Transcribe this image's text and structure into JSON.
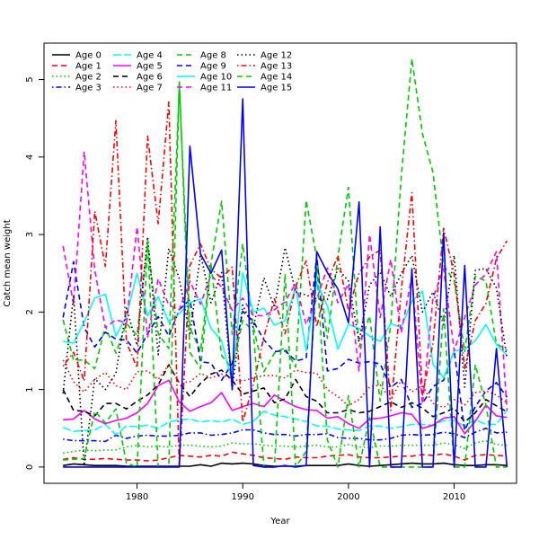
{
  "chart_data": {
    "type": "line",
    "title": "",
    "xlabel": "Year",
    "ylabel": "Catch mean weight",
    "xlim": [
      1971.2,
      1915.9
    ],
    "ylim": [
      -0.21,
      5.47
    ],
    "x_ticks": [
      1980,
      1990,
      2000,
      2010
    ],
    "y_ticks": [
      0,
      1,
      2,
      3,
      4,
      5
    ],
    "legend_position": "top-left",
    "x": [
      1973,
      1974,
      1975,
      1976,
      1977,
      1978,
      1979,
      1980,
      1981,
      1982,
      1983,
      1984,
      1985,
      1986,
      1987,
      1988,
      1989,
      1990,
      1991,
      1992,
      1993,
      1994,
      1995,
      1996,
      1997,
      1998,
      1999,
      2000,
      2001,
      2002,
      2003,
      2004,
      2005,
      2006,
      2007,
      2008,
      2009,
      2010,
      2011,
      2012,
      2013,
      2014,
      2015
    ],
    "series": [
      {
        "name": "Age 0",
        "color": "#000000",
        "dash": "solid",
        "values": [
          0.02,
          0.04,
          0.03,
          0.02,
          0.02,
          0.02,
          0.01,
          0.01,
          0.01,
          0.01,
          0.01,
          0.01,
          0.01,
          0.03,
          0.01,
          0.05,
          0.04,
          0.05,
          0.04,
          0.02,
          0.01,
          0.01,
          0.01,
          0.02,
          0.02,
          0.02,
          0.02,
          0.04,
          0.02,
          0.01,
          0.02,
          0.03,
          0.04,
          0.05,
          0.04,
          0.04,
          0.05,
          0.03,
          0.02,
          0.02,
          0.03,
          0.03,
          0.02
        ]
      },
      {
        "name": "Age 1",
        "color": "#ff0000",
        "dash": "dashed",
        "values": [
          0.1,
          0.12,
          0.1,
          0.1,
          0.11,
          0.1,
          0.09,
          0.09,
          0.08,
          0.09,
          0.12,
          0.15,
          0.14,
          0.13,
          0.15,
          0.14,
          0.19,
          0.17,
          0.15,
          0.12,
          0.11,
          0.1,
          0.13,
          0.12,
          0.12,
          0.14,
          0.15,
          0.16,
          0.13,
          0.12,
          0.12,
          0.13,
          0.14,
          0.14,
          0.16,
          0.15,
          0.17,
          0.14,
          0.09,
          0.15,
          0.16,
          0.15,
          0.14
        ]
      },
      {
        "name": "Age 2",
        "color": "#00cc00",
        "dash": "dotted",
        "values": [
          0.18,
          0.2,
          0.22,
          0.21,
          0.22,
          0.22,
          0.26,
          0.28,
          0.26,
          0.27,
          0.26,
          0.28,
          0.28,
          0.27,
          0.26,
          0.27,
          0.31,
          0.3,
          0.3,
          0.28,
          0.27,
          0.27,
          0.26,
          0.27,
          0.28,
          0.26,
          0.26,
          0.29,
          0.26,
          0.25,
          0.27,
          0.27,
          0.28,
          0.28,
          0.28,
          0.28,
          0.31,
          0.29,
          0.24,
          0.31,
          0.34,
          0.29,
          0.28
        ]
      },
      {
        "name": "Age 3",
        "color": "#0000ff",
        "dash": "dotdash",
        "values": [
          0.36,
          0.34,
          0.34,
          0.34,
          0.33,
          0.41,
          0.37,
          0.4,
          0.41,
          0.4,
          0.4,
          0.41,
          0.44,
          0.44,
          0.41,
          0.42,
          0.44,
          0.48,
          0.48,
          0.44,
          0.42,
          0.42,
          0.4,
          0.42,
          0.42,
          0.43,
          0.38,
          0.37,
          0.37,
          0.35,
          0.35,
          0.37,
          0.41,
          0.42,
          0.41,
          0.42,
          0.45,
          0.43,
          0.38,
          0.45,
          0.5,
          0.44,
          0.45
        ]
      },
      {
        "name": "Age 4",
        "color": "#00ffff",
        "dash": "longdash",
        "values": [
          0.51,
          0.46,
          0.47,
          0.48,
          0.55,
          0.42,
          0.53,
          0.52,
          0.54,
          0.5,
          0.58,
          0.61,
          0.62,
          0.58,
          0.6,
          0.58,
          0.62,
          0.55,
          0.59,
          0.72,
          0.67,
          0.65,
          0.62,
          0.59,
          0.53,
          0.53,
          0.49,
          0.48,
          0.47,
          0.53,
          0.53,
          0.5,
          0.52,
          0.55,
          0.55,
          0.54,
          0.6,
          0.6,
          0.53,
          0.61,
          0.55,
          0.55,
          0.73
        ]
      },
      {
        "name": "Age 5",
        "color": "#ff00ff",
        "dash": "solid",
        "values": [
          0.61,
          0.62,
          0.73,
          0.62,
          0.56,
          0.6,
          0.63,
          0.7,
          0.82,
          1.05,
          1.12,
          0.84,
          0.72,
          0.78,
          0.83,
          0.96,
          0.73,
          0.78,
          0.82,
          0.78,
          0.93,
          0.85,
          0.78,
          0.74,
          0.73,
          0.63,
          0.65,
          0.56,
          0.5,
          0.62,
          0.63,
          0.66,
          0.7,
          0.68,
          0.5,
          0.54,
          0.63,
          0.65,
          0.43,
          0.59,
          0.8,
          0.66,
          0.64
        ]
      },
      {
        "name": "Age 6",
        "color": "#000000",
        "dash": "dashed",
        "values": [
          1.0,
          0.73,
          0.72,
          0.66,
          0.82,
          0.82,
          0.75,
          0.85,
          0.93,
          1.06,
          1.32,
          1.08,
          0.91,
          1.08,
          1.2,
          1.25,
          1.12,
          0.94,
          0.98,
          1.02,
          0.83,
          0.88,
          1.13,
          0.91,
          0.85,
          0.7,
          0.7,
          0.74,
          0.7,
          0.72,
          0.78,
          0.84,
          0.77,
          0.83,
          0.76,
          0.65,
          0.7,
          0.76,
          0.58,
          0.7,
          0.87,
          0.79,
          0.71
        ]
      },
      {
        "name": "Age 7",
        "color": "#ff0000",
        "dash": "dotted",
        "values": [
          1.38,
          1.1,
          0.97,
          1.13,
          1.22,
          1.05,
          1.0,
          1.23,
          1.24,
          1.13,
          1.32,
          1.09,
          1.1,
          1.21,
          1.15,
          1.2,
          1.13,
          1.11,
          1.15,
          1.18,
          1.18,
          1.15,
          1.25,
          1.22,
          1.21,
          1.0,
          0.91,
          0.79,
          0.87,
          1.03,
          1.06,
          0.87,
          1.12,
          0.97,
          1.05,
          0.82,
          0.77,
          0.87,
          0.8,
          0.96,
          0.98,
          0.93,
          0.83
        ]
      },
      {
        "name": "Age 8",
        "color": "#00cc00",
        "dash": "dashed",
        "values": [
          1.9,
          1.38,
          1.38,
          1.27,
          1.82,
          1.47,
          1.85,
          1.7,
          2.9,
          1.72,
          1.53,
          4.93,
          1.8,
          1.49,
          2.63,
          3.43,
          1.71,
          2.88,
          1.81,
          1.23,
          1.47,
          1.54,
          1.29,
          3.44,
          2.7,
          1.66,
          2.71,
          3.61,
          1.55,
          1.95,
          0.85,
          1.84,
          3.75,
          5.27,
          4.3,
          3.8,
          2.6,
          2.4,
          1.49,
          2.46,
          2.4,
          1.59,
          1.51
        ]
      },
      {
        "name": "Age 9",
        "color": "#0000ff",
        "dash": "dashed",
        "values": [
          1.93,
          2.65,
          1.8,
          1.55,
          1.74,
          1.65,
          1.64,
          1.47,
          1.72,
          1.94,
          1.69,
          2.03,
          2.16,
          1.36,
          1.34,
          1.12,
          1.34,
          2.01,
          1.88,
          1.64,
          1.49,
          1.5,
          1.37,
          1.4,
          2.73,
          1.24,
          1.27,
          1.39,
          1.34,
          1.36,
          1.33,
          1.03,
          1.13,
          0.77,
          0.82,
          1.04,
          1.12,
          1.5,
          0.47,
          0.78,
          0.98,
          1.09,
          0.9
        ]
      },
      {
        "name": "Age 10",
        "color": "#00ffff",
        "dash": "solid",
        "values": [
          1.62,
          1.6,
          1.87,
          2.18,
          2.23,
          1.69,
          1.95,
          2.5,
          1.95,
          2.2,
          1.87,
          1.98,
          2.12,
          2.17,
          1.79,
          1.63,
          1.1,
          2.51,
          2.0,
          2.05,
          1.83,
          1.89,
          2.32,
          1.5,
          2.38,
          2.08,
          1.52,
          1.84,
          1.79,
          1.69,
          1.62,
          1.85,
          1.8,
          2.14,
          2.27,
          1.33,
          1.15,
          1.5,
          1.52,
          1.63,
          1.84,
          1.58,
          1.44
        ]
      },
      {
        "name": "Age 11",
        "color": "#ff00ff",
        "dash": "dashed",
        "values": [
          2.85,
          2.1,
          4.07,
          2.54,
          1.8,
          1.9,
          1.86,
          3.1,
          1.68,
          2.43,
          2.09,
          2.03,
          2.4,
          2.1,
          2.48,
          2.32,
          2.02,
          2.18,
          1.96,
          1.95,
          2.03,
          2.13,
          2.37,
          1.84,
          2.17,
          2.57,
          2.12,
          2.36,
          1.24,
          3.0,
          1.93,
          2.68,
          1.73,
          2.47,
          0.81,
          2.18,
          2.56,
          1.5,
          1.93,
          2.35,
          2.49,
          2.78,
          0.73
        ]
      },
      {
        "name": "Age 12",
        "color": "#000000",
        "dash": "dotted",
        "values": [
          0.95,
          2.22,
          0.02,
          1.14,
          1.0,
          1.21,
          2.05,
          1.57,
          2.97,
          1.45,
          2.82,
          2.43,
          1.7,
          2.75,
          2.12,
          2.51,
          1.0,
          2.09,
          1.8,
          2.44,
          2.06,
          2.83,
          2.26,
          2.22,
          2.17,
          2.16,
          2.56,
          2.4,
          1.62,
          2.35,
          2.52,
          2.2,
          2.5,
          2.73,
          2.0,
          2.26,
          1.84,
          2.73,
          1.03,
          2.54,
          2.56,
          2.31,
          1.4
        ]
      },
      {
        "name": "Age 13",
        "color": "#ff0000",
        "dash": "dotdash",
        "values": [
          1.3,
          1.48,
          1.11,
          3.3,
          2.59,
          4.47,
          1.61,
          1.28,
          4.27,
          3.14,
          4.71,
          0.0,
          2.6,
          2.88,
          2.55,
          2.44,
          2.58,
          0.58,
          1.07,
          1.68,
          2.17,
          1.72,
          2.33,
          2.66,
          1.81,
          2.38,
          2.73,
          2.02,
          2.5,
          2.71,
          2.8,
          0.73,
          2.28,
          3.54,
          0.93,
          1.6,
          3.08,
          2.49,
          1.27,
          1.89,
          2.11,
          2.69,
          2.92
        ]
      },
      {
        "name": "Age 14",
        "color": "#00cc00",
        "dash": "dashed",
        "values": [
          0.09,
          0.1,
          0.11,
          0.72,
          0.57,
          0.75,
          0.05,
          0.0,
          2.93,
          0.0,
          0.0,
          4.99,
          1.48,
          1.27,
          2.62,
          1.44,
          1.27,
          1.89,
          1.75,
          0.0,
          0.0,
          2.49,
          0.0,
          0.2,
          2.57,
          0.35,
          0.0,
          0.92,
          0.0,
          0.64,
          0.0,
          0.0,
          0.0,
          0.0,
          0.0,
          0.0,
          2.04,
          0.0,
          0.0,
          1.32,
          0.8,
          0.0,
          0.0
        ]
      },
      {
        "name": "Age 15",
        "color": "#0000ff",
        "dash": "solid",
        "values": [
          0.0,
          0.0,
          0.0,
          0.0,
          0.0,
          0.0,
          0.0,
          0.0,
          0.0,
          0.0,
          0.0,
          0.0,
          4.14,
          2.75,
          2.5,
          2.8,
          1.0,
          4.75,
          0.02,
          0.0,
          0.0,
          0.02,
          0.0,
          0.02,
          2.78,
          2.51,
          2.3,
          1.86,
          3.42,
          0.0,
          3.1,
          0.0,
          0.0,
          2.56,
          0.0,
          0.0,
          3.02,
          0.0,
          2.6,
          0.0,
          0.0,
          1.53,
          0.0
        ]
      }
    ]
  }
}
